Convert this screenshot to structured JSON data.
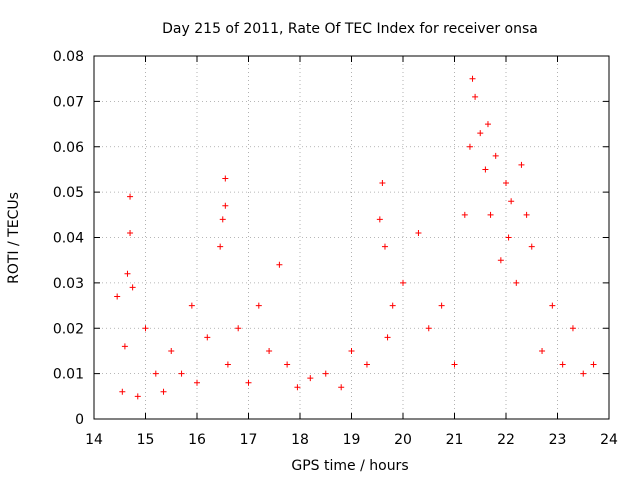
{
  "chart_data": {
    "type": "scatter",
    "title": "Day 215 of 2011, Rate Of TEC Index for receiver onsa",
    "xlabel": "GPS time / hours",
    "ylabel": "ROTI / TECUs",
    "xlim": [
      14,
      24
    ],
    "ylim": [
      0,
      0.08
    ],
    "x_ticks": [
      "14",
      "15",
      "16",
      "17",
      "18",
      "19",
      "20",
      "21",
      "22",
      "23",
      "24"
    ],
    "y_ticks": [
      "0",
      "0.01",
      "0.02",
      "0.03",
      "0.04",
      "0.05",
      "0.06",
      "0.07",
      "0.08"
    ],
    "grid": true,
    "marker": "+",
    "marker_color": "#ff0000",
    "series": [
      {
        "x": [
          14.45,
          14.55,
          14.6,
          14.65,
          14.7,
          14.7,
          14.75,
          14.85,
          15.0,
          15.2,
          15.35,
          15.5,
          15.7,
          15.9,
          16.0,
          16.2,
          16.45,
          16.5,
          16.55,
          16.55,
          16.6,
          16.8,
          17.0,
          17.2,
          17.4,
          17.6,
          17.75,
          17.95,
          18.2,
          18.5,
          18.8,
          19.0,
          19.3,
          19.55,
          19.6,
          19.65,
          19.7,
          19.8,
          20.0,
          20.3,
          20.5,
          20.75,
          21.0,
          21.2,
          21.3,
          21.35,
          21.4,
          21.5,
          21.6,
          21.65,
          21.7,
          21.8,
          21.9,
          22.0,
          22.05,
          22.1,
          22.2,
          22.3,
          22.4,
          22.5,
          22.7,
          22.9,
          23.1,
          23.3,
          23.5,
          23.7
        ],
        "y": [
          0.027,
          0.006,
          0.016,
          0.032,
          0.049,
          0.041,
          0.029,
          0.005,
          0.02,
          0.01,
          0.006,
          0.015,
          0.01,
          0.025,
          0.008,
          0.018,
          0.038,
          0.044,
          0.047,
          0.053,
          0.012,
          0.02,
          0.008,
          0.025,
          0.015,
          0.034,
          0.012,
          0.007,
          0.009,
          0.01,
          0.007,
          0.015,
          0.012,
          0.044,
          0.052,
          0.038,
          0.018,
          0.025,
          0.03,
          0.041,
          0.02,
          0.025,
          0.012,
          0.045,
          0.06,
          0.075,
          0.071,
          0.063,
          0.055,
          0.065,
          0.045,
          0.058,
          0.035,
          0.052,
          0.04,
          0.048,
          0.03,
          0.056,
          0.045,
          0.038,
          0.015,
          0.025,
          0.012,
          0.02,
          0.01,
          0.012
        ]
      }
    ]
  }
}
